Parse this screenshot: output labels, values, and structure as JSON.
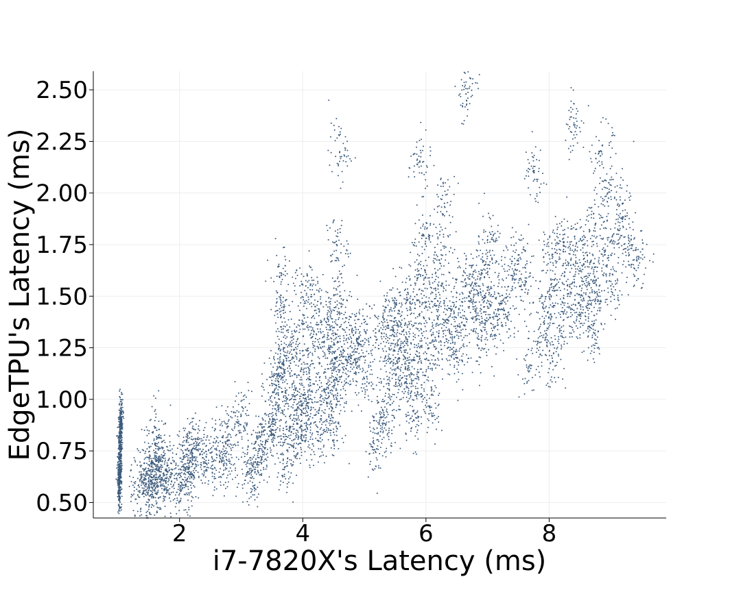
{
  "chart_data": {
    "type": "scatter",
    "title": "",
    "xlabel": "i7-7820X's Latency (ms)",
    "ylabel": "EdgeTPU's Latency (ms)",
    "xlim": [
      0.6,
      9.9
    ],
    "ylim": [
      0.425,
      2.59
    ],
    "xticks": [
      2,
      4,
      6,
      8
    ],
    "xtick_labels": [
      "2",
      "4",
      "6",
      "8"
    ],
    "yticks": [
      0.5,
      0.75,
      1.0,
      1.25,
      1.5,
      1.75,
      2.0,
      2.25,
      2.5
    ],
    "ytick_labels": [
      "0.50",
      "0.75",
      "1.00",
      "1.25",
      "1.50",
      "1.75",
      "2.00",
      "2.25",
      "2.50"
    ],
    "grid": true,
    "legend": "none",
    "marker_color": "#3b5a7c",
    "series": [
      {
        "values_xy": [
          [
            1.02,
            0.53
          ],
          [
            1.03,
            0.57
          ],
          [
            1.02,
            0.62
          ],
          [
            1.04,
            0.66
          ],
          [
            1.03,
            0.7
          ],
          [
            1.02,
            0.74
          ],
          [
            1.04,
            0.78
          ],
          [
            1.03,
            0.82
          ],
          [
            1.05,
            0.86
          ],
          [
            1.04,
            0.9
          ],
          [
            1.05,
            0.93
          ],
          [
            1.35,
            0.55
          ],
          [
            1.4,
            0.6
          ],
          [
            1.45,
            0.56
          ],
          [
            1.5,
            0.62
          ],
          [
            1.55,
            0.54
          ],
          [
            1.58,
            0.58
          ],
          [
            1.6,
            0.65
          ],
          [
            1.62,
            0.7
          ],
          [
            1.65,
            0.76
          ],
          [
            1.63,
            0.85
          ],
          [
            1.7,
            0.62
          ],
          [
            1.75,
            0.58
          ],
          [
            1.8,
            0.68
          ],
          [
            1.85,
            0.62
          ],
          [
            2.05,
            0.57
          ],
          [
            2.1,
            0.58
          ],
          [
            2.1,
            0.66
          ],
          [
            2.15,
            0.67
          ],
          [
            2.15,
            0.75
          ],
          [
            2.2,
            0.74
          ],
          [
            2.3,
            0.78
          ],
          [
            2.4,
            0.74
          ],
          [
            2.55,
            0.7
          ],
          [
            2.65,
            0.7
          ],
          [
            2.7,
            0.79
          ],
          [
            2.8,
            0.7
          ],
          [
            2.9,
            0.88
          ],
          [
            3.0,
            0.92
          ],
          [
            3.15,
            0.62
          ],
          [
            3.18,
            0.68
          ],
          [
            3.2,
            0.72
          ],
          [
            3.3,
            0.76
          ],
          [
            3.4,
            0.8
          ],
          [
            3.5,
            0.85
          ],
          [
            3.55,
            0.9
          ],
          [
            3.6,
            0.95
          ],
          [
            3.55,
            1.05
          ],
          [
            3.6,
            1.1
          ],
          [
            3.65,
            1.15
          ],
          [
            3.7,
            1.25
          ],
          [
            3.65,
            1.4
          ],
          [
            3.65,
            1.6
          ],
          [
            3.7,
            0.66
          ],
          [
            3.8,
            0.78
          ],
          [
            3.85,
            0.88
          ],
          [
            3.9,
            0.95
          ],
          [
            3.95,
            1.05
          ],
          [
            3.85,
            1.2
          ],
          [
            3.9,
            1.35
          ],
          [
            4.0,
            0.8
          ],
          [
            4.05,
            0.92
          ],
          [
            4.1,
            1.0
          ],
          [
            4.1,
            1.15
          ],
          [
            4.15,
            1.3
          ],
          [
            4.2,
            1.45
          ],
          [
            4.05,
            1.55
          ],
          [
            4.25,
            0.8
          ],
          [
            4.3,
            0.92
          ],
          [
            4.35,
            1.05
          ],
          [
            4.4,
            1.2
          ],
          [
            4.4,
            1.3
          ],
          [
            4.45,
            1.4
          ],
          [
            4.5,
            0.84
          ],
          [
            4.55,
            1.0
          ],
          [
            4.55,
            1.1
          ],
          [
            4.55,
            1.2
          ],
          [
            4.6,
            1.35
          ],
          [
            4.6,
            1.5
          ],
          [
            4.55,
            1.75
          ],
          [
            4.6,
            2.2
          ],
          [
            4.7,
            1.15
          ],
          [
            4.8,
            1.25
          ],
          [
            4.85,
            1.35
          ],
          [
            4.9,
            1.2
          ],
          [
            5.0,
            1.1
          ],
          [
            5.1,
            1.3
          ],
          [
            5.2,
            0.76
          ],
          [
            5.25,
            0.9
          ],
          [
            5.3,
            1.4
          ],
          [
            5.35,
            0.88
          ],
          [
            5.4,
            1.05
          ],
          [
            5.4,
            1.2
          ],
          [
            5.45,
            1.35
          ],
          [
            5.5,
            1.45
          ],
          [
            5.55,
            1.15
          ],
          [
            5.6,
            1.25
          ],
          [
            5.65,
            1.05
          ],
          [
            5.7,
            1.2
          ],
          [
            5.7,
            1.35
          ],
          [
            5.75,
            1.5
          ],
          [
            5.8,
            0.9
          ],
          [
            5.85,
            1.1
          ],
          [
            5.9,
            1.25
          ],
          [
            5.9,
            1.45
          ],
          [
            5.95,
            1.6
          ],
          [
            5.95,
            1.8
          ],
          [
            5.9,
            2.15
          ],
          [
            6.05,
            0.93
          ],
          [
            6.1,
            1.15
          ],
          [
            6.15,
            1.3
          ],
          [
            6.2,
            1.4
          ],
          [
            6.2,
            1.55
          ],
          [
            6.25,
            1.7
          ],
          [
            6.3,
            1.95
          ],
          [
            6.4,
            1.3
          ],
          [
            6.45,
            1.45
          ],
          [
            6.5,
            1.2
          ],
          [
            6.55,
            1.35
          ],
          [
            6.6,
            1.6
          ],
          [
            6.65,
            2.48
          ],
          [
            6.7,
            1.5
          ],
          [
            6.8,
            1.4
          ],
          [
            6.85,
            1.55
          ],
          [
            6.9,
            1.3
          ],
          [
            6.95,
            1.65
          ],
          [
            7.0,
            1.45
          ],
          [
            7.05,
            1.8
          ],
          [
            7.1,
            1.35
          ],
          [
            7.2,
            1.5
          ],
          [
            7.3,
            1.4
          ],
          [
            7.4,
            1.6
          ],
          [
            7.5,
            1.7
          ],
          [
            7.6,
            1.55
          ],
          [
            7.7,
            1.15
          ],
          [
            7.75,
            2.1
          ],
          [
            7.9,
            1.3
          ],
          [
            7.95,
            1.45
          ],
          [
            8.0,
            1.7
          ],
          [
            8.05,
            1.2
          ],
          [
            8.1,
            1.55
          ],
          [
            8.2,
            1.35
          ],
          [
            8.25,
            1.8
          ],
          [
            8.3,
            1.5
          ],
          [
            8.35,
            1.65
          ],
          [
            8.4,
            2.33
          ],
          [
            8.45,
            1.4
          ],
          [
            8.5,
            1.55
          ],
          [
            8.55,
            1.75
          ],
          [
            8.6,
            1.45
          ],
          [
            8.65,
            1.6
          ],
          [
            8.7,
            1.3
          ],
          [
            8.75,
            1.85
          ],
          [
            8.8,
            1.5
          ],
          [
            8.85,
            2.2
          ],
          [
            8.9,
            1.7
          ],
          [
            8.95,
            2.0
          ],
          [
            9.0,
            1.55
          ],
          [
            9.1,
            1.8
          ],
          [
            9.2,
            1.95
          ],
          [
            9.3,
            1.7
          ],
          [
            9.45,
            1.68
          ]
        ]
      }
    ]
  }
}
